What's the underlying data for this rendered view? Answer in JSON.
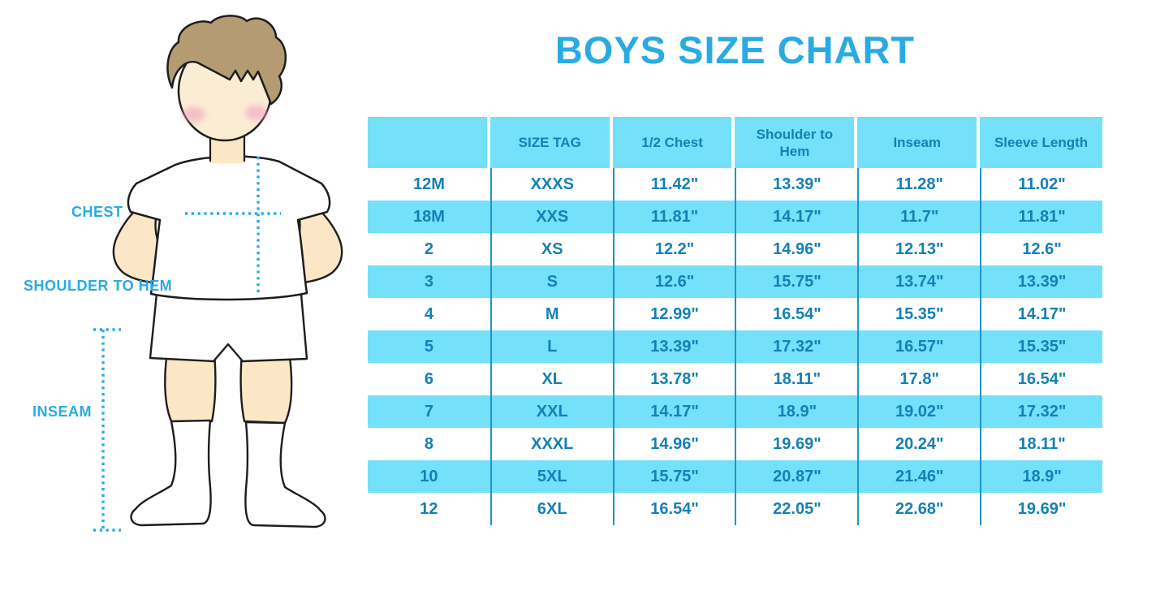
{
  "title": "BOYS SIZE CHART",
  "figure_labels": {
    "chest": "CHEST",
    "shoulder_to_hem": "SHOULDER TO HEM",
    "inseam": "INSEAM"
  },
  "colors": {
    "accent_blue": "#29ABE2",
    "table_cyan": "#74E0F9",
    "table_text": "#1480B5",
    "grid_line": "#1E95C8"
  },
  "chart_data": {
    "type": "table",
    "title": "BOYS SIZE CHART",
    "columns": [
      "",
      "SIZE TAG",
      "1/2 Chest",
      "Shoulder to Hem",
      "Inseam",
      "Sleeve Length"
    ],
    "rows": [
      [
        "12M",
        "XXXS",
        "11.42\"",
        "13.39\"",
        "11.28\"",
        "11.02\""
      ],
      [
        "18M",
        "XXS",
        "11.81\"",
        "14.17\"",
        "11.7\"",
        "11.81\""
      ],
      [
        "2",
        "XS",
        "12.2\"",
        "14.96\"",
        "12.13\"",
        "12.6\""
      ],
      [
        "3",
        "S",
        "12.6\"",
        "15.75\"",
        "13.74\"",
        "13.39\""
      ],
      [
        "4",
        "M",
        "12.99\"",
        "16.54\"",
        "15.35\"",
        "14.17\""
      ],
      [
        "5",
        "L",
        "13.39\"",
        "17.32\"",
        "16.57\"",
        "15.35\""
      ],
      [
        "6",
        "XL",
        "13.78\"",
        "18.11\"",
        "17.8\"",
        "16.54\""
      ],
      [
        "7",
        "XXL",
        "14.17\"",
        "18.9\"",
        "19.02\"",
        "17.32\""
      ],
      [
        "8",
        "XXXL",
        "14.96\"",
        "19.69\"",
        "20.24\"",
        "18.11\""
      ],
      [
        "10",
        "5XL",
        "15.75\"",
        "20.87\"",
        "21.46\"",
        "18.9\""
      ],
      [
        "12",
        "6XL",
        "16.54\"",
        "22.05\"",
        "22.68\"",
        "19.69\""
      ]
    ]
  }
}
